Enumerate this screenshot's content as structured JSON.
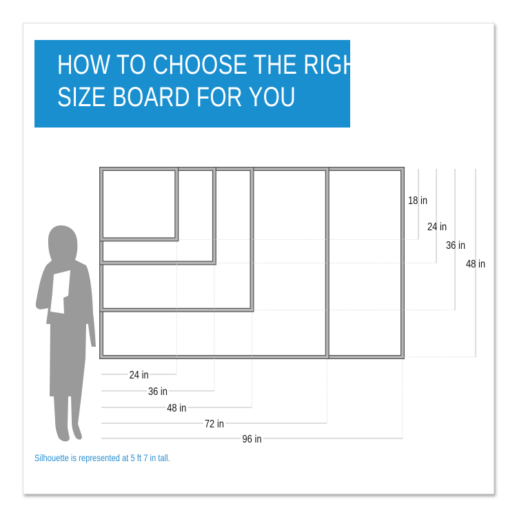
{
  "title": {
    "line1": "HOW TO CHOOSE THE RIGHT",
    "line2": "SIZE BOARD FOR YOU"
  },
  "colors": {
    "banner": "#1a8fd0",
    "frame": "#b5b5b5",
    "silhouette": "#9a9a9a",
    "note": "#2a8fcf"
  },
  "boards": [
    {
      "width_in": 24,
      "height_in": 18
    },
    {
      "width_in": 36,
      "height_in": 24
    },
    {
      "width_in": 48,
      "height_in": 36
    },
    {
      "width_in": 72,
      "height_in": 48
    },
    {
      "width_in": 96,
      "height_in": 48
    }
  ],
  "height_labels": [
    "18 in",
    "24 in",
    "36 in",
    "48 in"
  ],
  "width_labels": [
    "24 in",
    "36 in",
    "48 in",
    "72 in",
    "96 in"
  ],
  "note": "Silhouette is represented at 5 ft 7 in tall."
}
